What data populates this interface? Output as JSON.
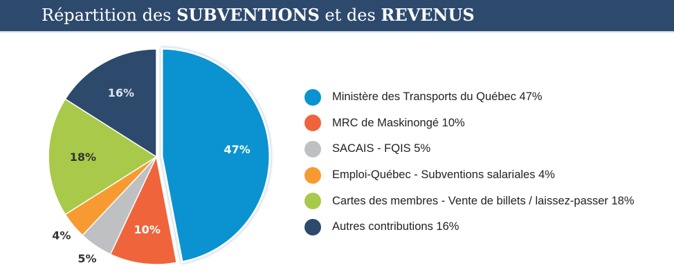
{
  "header": {
    "title_parts": [
      "Répartition des ",
      "SUBVENTIONS",
      " et des ",
      "REVENUS"
    ]
  },
  "chart_data": {
    "type": "pie",
    "title": "Répartition des SUBVENTIONS et des REVENUS",
    "exploded": "Ministère des Transports du Québec",
    "slices": [
      {
        "name": "Ministère des Transports du Québec",
        "value": 47,
        "label": "47%",
        "color": "#0a93d0",
        "legend": "Ministère des Transports du Québec 47%"
      },
      {
        "name": "MRC de Maskinongé",
        "value": 10,
        "label": "10%",
        "color": "#f0643b",
        "legend": "MRC de Maskinongé 10%"
      },
      {
        "name": "SACAIS - FQIS",
        "value": 5,
        "label": "5%",
        "color": "#bfc0c2",
        "legend": "SACAIS - FQIS 5%"
      },
      {
        "name": "Emploi-Québec - Subventions salariales",
        "value": 4,
        "label": "4%",
        "color": "#f79a32",
        "legend": "Emploi-Québec - Subventions salariales 4%"
      },
      {
        "name": "Cartes des membres - Vente de billets / laissez-passer",
        "value": 18,
        "label": "18%",
        "color": "#a9c94a",
        "legend": "Cartes des membres - Vente de billets / laissez-passer 18%"
      },
      {
        "name": "Autres contributions",
        "value": 16,
        "label": "16%",
        "color": "#2d4a6d",
        "legend": "Autres contributions 16%"
      }
    ],
    "legend_placement": "right"
  }
}
